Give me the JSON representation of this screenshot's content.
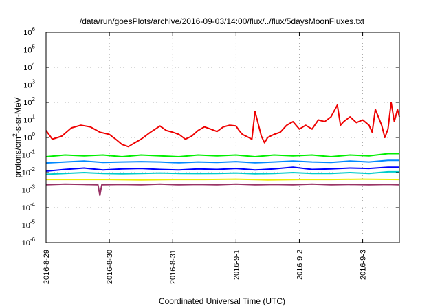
{
  "chart_data": {
    "type": "line",
    "title": "/data/run/goesPlots/archive/2016-09-03/14:00/flux/../flux/5daysMoonFluxes.txt",
    "xlabel": "Coordinated Universal Time (UTC)",
    "ylabel_parts": {
      "pre": "protons/cm",
      "sup": "2",
      "post": "-s-sr-MeV"
    },
    "x_tick_labels": [
      "2016-8-29",
      "2016-8-30",
      "2016-8-31",
      "2016-9-1",
      "2016-9-2",
      "2016-9-3"
    ],
    "xlim_days": [
      0,
      5.58
    ],
    "y_scale": "log",
    "ylim": [
      1e-06,
      1000000.0
    ],
    "y_tick_exponents": [
      -6,
      -5,
      -4,
      -3,
      -2,
      -1,
      0,
      1,
      2,
      3,
      4,
      5,
      6
    ],
    "grid": true,
    "legend": "none",
    "series": [
      {
        "color": "#ee0000",
        "x": [
          0.0,
          0.1,
          0.25,
          0.4,
          0.55,
          0.7,
          0.85,
          1.0,
          1.1,
          1.2,
          1.3,
          1.4,
          1.5,
          1.65,
          1.8,
          1.9,
          2.0,
          2.1,
          2.2,
          2.3,
          2.4,
          2.5,
          2.6,
          2.7,
          2.8,
          2.9,
          3.0,
          3.05,
          3.1,
          3.2,
          3.25,
          3.3,
          3.4,
          3.45,
          3.5,
          3.6,
          3.7,
          3.8,
          3.9,
          4.0,
          4.1,
          4.2,
          4.3,
          4.4,
          4.5,
          4.6,
          4.65,
          4.7,
          4.8,
          4.9,
          5.0,
          5.1,
          5.15,
          5.2,
          5.3,
          5.35,
          5.4,
          5.45,
          5.5,
          5.55,
          5.58
        ],
        "y": [
          2.5,
          0.8,
          1.2,
          3.5,
          5.0,
          4.0,
          2.0,
          1.5,
          0.8,
          0.4,
          0.3,
          0.5,
          0.8,
          2.0,
          4.5,
          2.5,
          2.0,
          1.5,
          0.8,
          1.2,
          2.5,
          4.0,
          3.0,
          2.2,
          4.0,
          5.0,
          4.5,
          2.5,
          1.5,
          1.0,
          0.8,
          30,
          1.2,
          0.5,
          1.0,
          1.5,
          2.0,
          5.0,
          8.0,
          3.0,
          5.0,
          3.0,
          10,
          8.0,
          15,
          70,
          5.0,
          8.0,
          15,
          7.0,
          10,
          5.0,
          2.0,
          40,
          5.0,
          1.0,
          3.0,
          100,
          8.0,
          40,
          15
        ]
      },
      {
        "color": "#00ee00",
        "x": [
          0.0,
          0.3,
          0.6,
          0.9,
          1.2,
          1.5,
          1.8,
          2.1,
          2.4,
          2.7,
          3.0,
          3.3,
          3.6,
          3.9,
          4.2,
          4.5,
          4.8,
          5.1,
          5.4,
          5.58
        ],
        "y": [
          0.08,
          0.1,
          0.09,
          0.1,
          0.08,
          0.1,
          0.09,
          0.08,
          0.1,
          0.09,
          0.1,
          0.08,
          0.1,
          0.09,
          0.1,
          0.08,
          0.1,
          0.09,
          0.12,
          0.12
        ]
      },
      {
        "color": "#0000ff",
        "x": [
          0.0,
          0.3,
          0.6,
          0.9,
          1.2,
          1.5,
          1.8,
          2.1,
          2.4,
          2.7,
          3.0,
          3.3,
          3.6,
          3.9,
          4.2,
          4.5,
          4.8,
          5.1,
          5.4,
          5.58
        ],
        "y": [
          0.012,
          0.015,
          0.018,
          0.014,
          0.016,
          0.017,
          0.015,
          0.014,
          0.016,
          0.015,
          0.017,
          0.014,
          0.016,
          0.02,
          0.015,
          0.016,
          0.018,
          0.017,
          0.02,
          0.02
        ]
      },
      {
        "color": "#0088ff",
        "x": [
          0.0,
          0.3,
          0.6,
          0.9,
          1.2,
          1.5,
          1.8,
          2.1,
          2.4,
          2.7,
          3.0,
          3.3,
          3.6,
          3.9,
          4.2,
          4.5,
          4.8,
          5.1,
          5.4,
          5.58
        ],
        "y": [
          0.035,
          0.04,
          0.045,
          0.038,
          0.04,
          0.042,
          0.04,
          0.036,
          0.04,
          0.038,
          0.042,
          0.036,
          0.04,
          0.045,
          0.04,
          0.038,
          0.045,
          0.04,
          0.05,
          0.05
        ]
      },
      {
        "color": "#00cccc",
        "x": [
          0.0,
          0.3,
          0.6,
          0.9,
          1.2,
          1.5,
          1.8,
          2.1,
          2.4,
          2.7,
          3.0,
          3.3,
          3.6,
          3.9,
          4.2,
          4.5,
          4.8,
          5.1,
          5.4,
          5.58
        ],
        "y": [
          0.008,
          0.009,
          0.01,
          0.009,
          0.0085,
          0.009,
          0.0095,
          0.009,
          0.0088,
          0.009,
          0.0095,
          0.0085,
          0.009,
          0.01,
          0.009,
          0.009,
          0.01,
          0.009,
          0.011,
          0.011
        ]
      },
      {
        "color": "#eeee00",
        "x": [
          0.0,
          0.5,
          1.0,
          1.5,
          2.0,
          2.5,
          3.0,
          3.5,
          4.0,
          4.5,
          5.0,
          5.58
        ],
        "y": [
          0.004,
          0.004,
          0.004,
          0.0038,
          0.004,
          0.004,
          0.0042,
          0.0038,
          0.004,
          0.004,
          0.0042,
          0.004
        ]
      },
      {
        "color": "#993366",
        "x": [
          0.0,
          0.3,
          0.6,
          0.82,
          0.85,
          0.88,
          1.2,
          1.5,
          1.8,
          2.1,
          2.4,
          2.7,
          3.0,
          3.3,
          3.6,
          3.9,
          4.2,
          4.5,
          4.8,
          5.1,
          5.4,
          5.58
        ],
        "y": [
          0.002,
          0.0022,
          0.0021,
          0.002,
          0.0005,
          0.002,
          0.0021,
          0.002,
          0.0022,
          0.002,
          0.0021,
          0.002,
          0.0022,
          0.002,
          0.0021,
          0.002,
          0.0022,
          0.002,
          0.0021,
          0.002,
          0.0021,
          0.002
        ]
      }
    ]
  }
}
